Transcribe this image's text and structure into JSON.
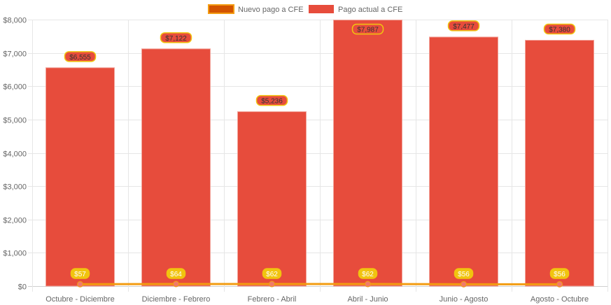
{
  "chart_data": {
    "type": "bar",
    "categories": [
      "Octubre - Diciembre",
      "Diciembre - Febrero",
      "Febrero - Abril",
      "Abril - Junio",
      "Junio - Agosto",
      "Agosto - Octubre"
    ],
    "series": [
      {
        "name": "Nuevo pago a CFE",
        "type": "line",
        "values": [
          57,
          64,
          62,
          62,
          56,
          56
        ],
        "labels": [
          "$57",
          "$64",
          "$62",
          "$62",
          "$56",
          "$56"
        ],
        "color": "#f39c12"
      },
      {
        "name": "Pago actual a CFE",
        "type": "bar",
        "values": [
          6555,
          7122,
          5236,
          7987,
          7477,
          7380
        ],
        "labels": [
          "$6,555",
          "$7,122",
          "$5,236",
          "$7,987",
          "$7,477",
          "$7,380"
        ],
        "color": "#e74c3c"
      }
    ],
    "ylim": [
      0,
      8000
    ],
    "yticks": [
      "$0",
      "$1,000",
      "$2,000",
      "$3,000",
      "$4,000",
      "$5,000",
      "$6,000",
      "$7,000",
      "$8,000"
    ],
    "grid": true,
    "legend": "top"
  }
}
